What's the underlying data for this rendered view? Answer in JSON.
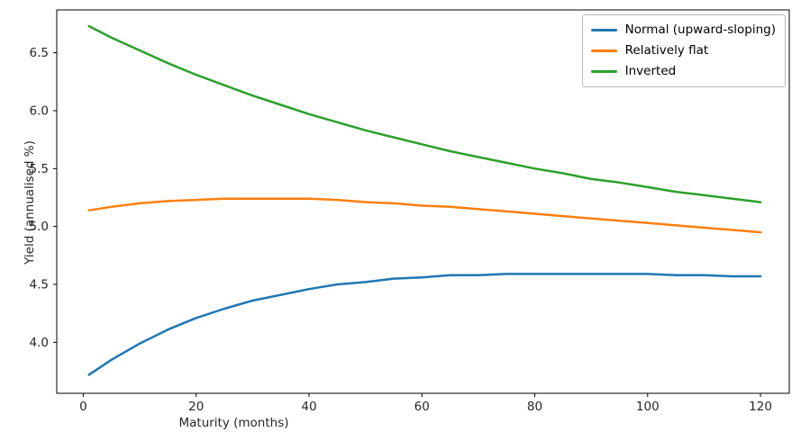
{
  "chart_data": {
    "type": "line",
    "title": "",
    "xlabel": "Maturity (months)",
    "ylabel": "Yield (annualised %)",
    "x": [
      1,
      5,
      10,
      15,
      20,
      25,
      30,
      35,
      40,
      45,
      50,
      55,
      60,
      65,
      70,
      75,
      80,
      85,
      90,
      95,
      100,
      105,
      110,
      115,
      120
    ],
    "series": [
      {
        "name": "Normal (upward-sloping)",
        "color": "#1f77b4",
        "values": [
          3.72,
          3.85,
          3.99,
          4.11,
          4.21,
          4.29,
          4.36,
          4.41,
          4.46,
          4.5,
          4.52,
          4.55,
          4.56,
          4.58,
          4.58,
          4.59,
          4.59,
          4.59,
          4.59,
          4.59,
          4.59,
          4.58,
          4.58,
          4.57,
          4.57
        ]
      },
      {
        "name": "Relatively flat",
        "color": "#ff7f0e",
        "values": [
          5.14,
          5.17,
          5.2,
          5.22,
          5.23,
          5.24,
          5.24,
          5.24,
          5.24,
          5.23,
          5.21,
          5.2,
          5.18,
          5.17,
          5.15,
          5.13,
          5.11,
          5.09,
          5.07,
          5.05,
          5.03,
          5.01,
          4.99,
          4.97,
          4.95
        ]
      },
      {
        "name": "Inverted",
        "color": "#2ca02c",
        "values": [
          6.73,
          6.63,
          6.52,
          6.41,
          6.31,
          6.22,
          6.13,
          6.05,
          5.97,
          5.9,
          5.83,
          5.77,
          5.71,
          5.65,
          5.6,
          5.55,
          5.5,
          5.46,
          5.41,
          5.38,
          5.34,
          5.3,
          5.27,
          5.24,
          5.21
        ]
      }
    ],
    "xlim": [
      -4.7,
      125.1
    ],
    "ylim": [
      3.56,
      6.87
    ],
    "xticks": [
      0,
      20,
      40,
      60,
      80,
      100,
      120
    ],
    "xtick_labels": [
      "0",
      "20",
      "40",
      "60",
      "80",
      "100",
      "120"
    ],
    "yticks": [
      4.0,
      4.5,
      5.0,
      5.5,
      6.0,
      6.5
    ],
    "ytick_labels": [
      "4.0",
      "4.5",
      "5.0",
      "5.5",
      "6.0",
      "6.5"
    ],
    "legend_position": "upper right",
    "grid": false,
    "background": "#ffffff",
    "line_width": 2.5
  }
}
